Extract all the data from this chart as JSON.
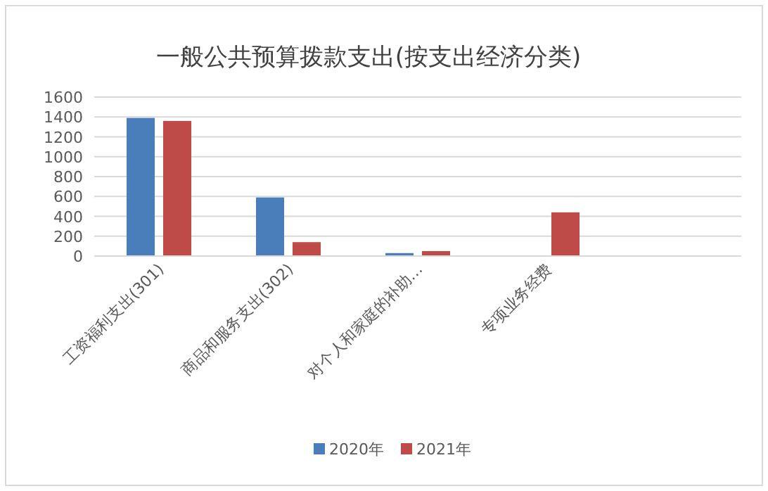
{
  "chart_data": {
    "type": "bar",
    "title": "一般公共预算拨款支出(按支出经济分类)",
    "categories": [
      "工资福利支出(301)",
      "商品和服务支出(302)",
      "对个人和家庭的补助…",
      "专项业务经费",
      null
    ],
    "series": [
      {
        "name": "2020年",
        "color": "#4a7ebb",
        "values": [
          1390,
          590,
          30,
          null,
          null
        ]
      },
      {
        "name": "2021年",
        "color": "#be4b48",
        "values": [
          1360,
          140,
          50,
          440,
          null
        ]
      }
    ],
    "ylim": [
      0,
      1600
    ],
    "yticks": [
      0,
      200,
      400,
      600,
      800,
      1000,
      1200,
      1400,
      1600
    ],
    "grid": "y",
    "legend": "bottom"
  }
}
